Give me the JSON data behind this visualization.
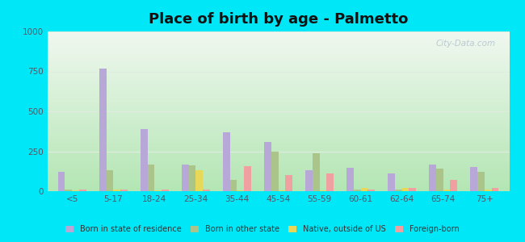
{
  "title": "Place of birth by age - Palmetto",
  "categories": [
    "<5",
    "5-17",
    "18-24",
    "25-34",
    "35-44",
    "45-54",
    "55-59",
    "60-61",
    "62-64",
    "65-74",
    "75+"
  ],
  "series": {
    "Born in state of residence": [
      120,
      770,
      390,
      165,
      370,
      310,
      130,
      145,
      110,
      165,
      150
    ],
    "Born in other state": [
      10,
      130,
      165,
      160,
      70,
      250,
      235,
      10,
      10,
      140,
      120
    ],
    "Native, outside of US": [
      5,
      10,
      5,
      130,
      5,
      5,
      5,
      20,
      20,
      10,
      10
    ],
    "Foreign-born": [
      10,
      10,
      10,
      10,
      155,
      100,
      110,
      10,
      20,
      70,
      20
    ]
  },
  "colors": {
    "Born in state of residence": "#b8a8d8",
    "Born in other state": "#aac48a",
    "Native, outside of US": "#e8d858",
    "Foreign-born": "#f0a0a0"
  },
  "ylim": [
    0,
    1000
  ],
  "yticks": [
    0,
    250,
    500,
    750,
    1000
  ],
  "background_top": "#f0f8f0",
  "background_bottom": "#c8ecc0",
  "outer_background": "#00e8f8",
  "grid_color": "#e0ece0",
  "title_fontsize": 13,
  "watermark": "City-Data.com",
  "bar_width": 0.17
}
